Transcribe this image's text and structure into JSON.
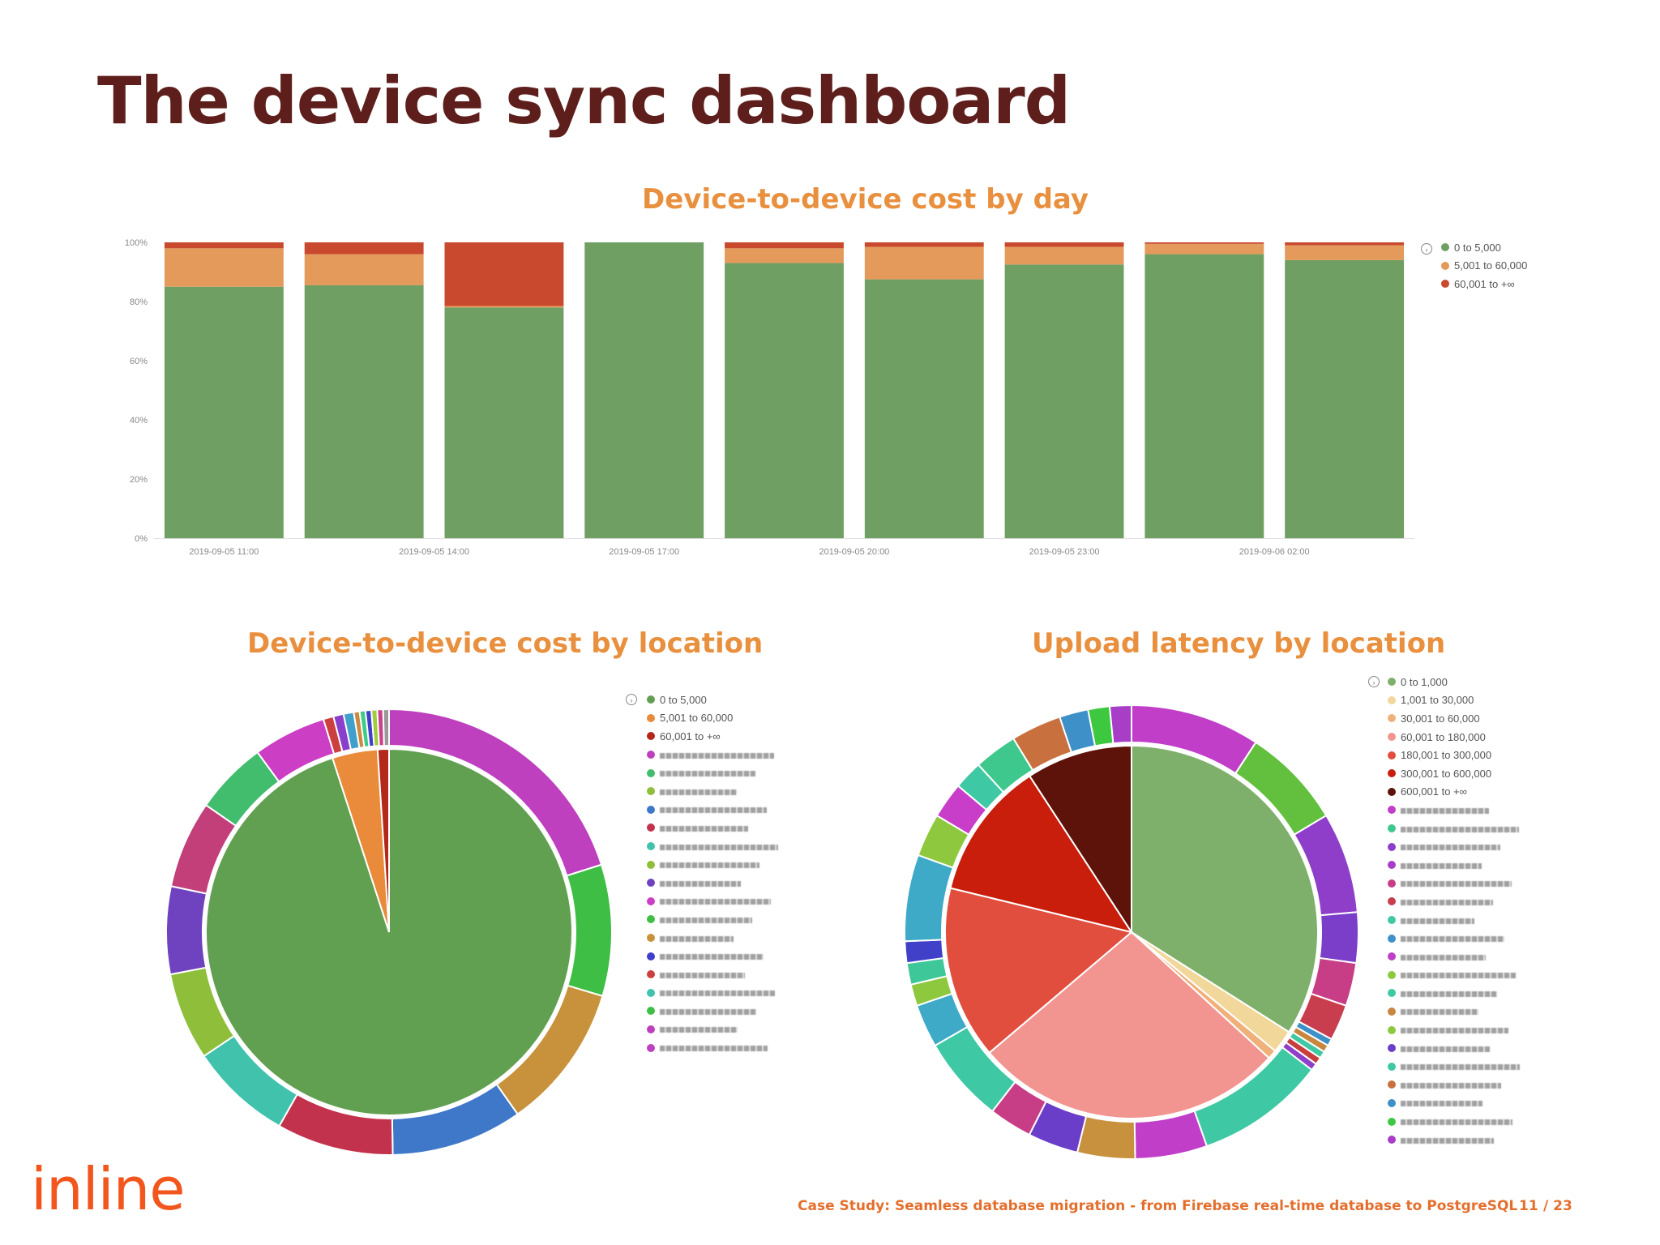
{
  "slide": {
    "title": "The device sync dashboard",
    "brand": "inline",
    "footer": "Case Study: Seamless database migration - from Firebase real-time database to PostgreSQL",
    "page_number": "11",
    "page_total": "/ 23"
  },
  "headings": {
    "bar": "Device-to-device cost by day",
    "pie_left": "Device-to-device cost by location",
    "pie_right": "Upload latency by location"
  },
  "legend_toggle_icon": "expand-circle-icon",
  "chart_data": [
    {
      "type": "bar",
      "stacked": true,
      "ylim": [
        0,
        100
      ],
      "y_ticks": [
        "0%",
        "20%",
        "40%",
        "60%",
        "80%",
        "100%"
      ],
      "x_tick_labels": [
        "2019-09-05 11:00",
        "2019-09-05 14:00",
        "2019-09-05 17:00",
        "2019-09-05 20:00",
        "2019-09-05 23:00",
        "2019-09-06 02:00"
      ],
      "series": [
        {
          "name": "0 to 5,000",
          "color": "#709f64",
          "values": [
            85,
            85.5,
            78,
            100,
            93,
            87.5,
            92.5,
            96,
            94
          ]
        },
        {
          "name": "5,001 to 60,000",
          "color": "#e39a5b",
          "values": [
            13,
            10.5,
            0.5,
            0,
            5,
            11,
            6,
            3.5,
            5
          ]
        },
        {
          "name": "60,001 to +∞",
          "color": "#c9492e",
          "values": [
            2,
            4,
            21.5,
            0,
            2,
            1.5,
            1.5,
            0.5,
            1
          ]
        }
      ],
      "legend_placement": "top-right",
      "grid": false
    },
    {
      "type": "pie",
      "inner": {
        "series": [
          {
            "name": "0 to 5,000",
            "color": "#62a051",
            "value": 95
          },
          {
            "name": "5,001 to 60,000",
            "color": "#e98b3a",
            "value": 4
          },
          {
            "name": "60,001 to +∞",
            "color": "#b3281a",
            "value": 1
          }
        ]
      },
      "outer": {
        "values": [
          19,
          9,
          10,
          9,
          8,
          7,
          6,
          6,
          6,
          5,
          5,
          0.7,
          0.7,
          0.7,
          0.4,
          0.4,
          0.4,
          0.4,
          0.4,
          0.4
        ],
        "colors": [
          "#bf40bf",
          "#3fbe46",
          "#c8913b",
          "#3f77c9",
          "#c2324d",
          "#40c2ad",
          "#8fbf3a",
          "#6f43bf",
          "#c23f7a",
          "#42bd6e",
          "#cc3fc4",
          "#cc3f3f",
          "#8a3fcc",
          "#3fa0cc",
          "#cc8a3f",
          "#3fcc8a",
          "#3f3fcc",
          "#a0cc3f",
          "#cc3f8a",
          "#999999"
        ]
      },
      "legend_visible": [
        "0 to 5,000",
        "5,001 to 60,000",
        "60,001 to +∞"
      ],
      "legend_colors": [
        "#62a051",
        "#e98b3a",
        "#b3281a",
        "#bf40bf",
        "#42bd6e",
        "#8fbf3a",
        "#3f77c9",
        "#c2324d",
        "#40c2ad",
        "#8fbf3a",
        "#6f43bf",
        "#cc3fc4",
        "#3fbe46",
        "#c8913b",
        "#3f3fcc",
        "#cc3f3f",
        "#40c2ad",
        "#3fbe46",
        "#bf40bf",
        "#bf40bf"
      ],
      "legend_placement": "right"
    },
    {
      "type": "pie",
      "inner": {
        "series": [
          {
            "name": "0 to 1,000",
            "color": "#7fb06b",
            "value": 34
          },
          {
            "name": "1,001 to 30,000",
            "color": "#f2d79a",
            "value": 2
          },
          {
            "name": "30,001 to 60,000",
            "color": "#f0b07a",
            "value": 0.8
          },
          {
            "name": "60,001 to 180,000",
            "color": "#f29590",
            "value": 27
          },
          {
            "name": "180,001 to 300,000",
            "color": "#e24e3e",
            "value": 15
          },
          {
            "name": "300,001 to 600,000",
            "color": "#c81e0b",
            "value": 12
          },
          {
            "name": "600,001 to +∞",
            "color": "#5d130a",
            "value": 9.2
          }
        ]
      },
      "outer": {
        "values": [
          9,
          7,
          7,
          3.5,
          3,
          2.5,
          0.5,
          0.5,
          0.5,
          0.5,
          0.5,
          9,
          5,
          4,
          3.5,
          3,
          6,
          3,
          1.5,
          1.5,
          1.5,
          6,
          3,
          2.5,
          2,
          3,
          3.5,
          2,
          1.5,
          1.5
        ],
        "colors": [
          "#c03ec8",
          "#62c03e",
          "#8e3ec8",
          "#7a3ec8",
          "#c83e86",
          "#c83e4e",
          "#3e90c8",
          "#c8863e",
          "#3ec8a4",
          "#c83e3e",
          "#8e3ec8",
          "#3ec8a4",
          "#c03ec8",
          "#c8913e",
          "#6a3ec8",
          "#c83e86",
          "#3ec8a4",
          "#3eaac8",
          "#8ec83e",
          "#3ec89a",
          "#4040c8",
          "#3eaac8",
          "#8ec83e",
          "#c83ec8",
          "#3ec8a4",
          "#3ec88e",
          "#c8713e",
          "#3e90c8",
          "#3ec840",
          "#a83ec8"
        ]
      },
      "legend_visible": [
        "0 to 1,000",
        "1,001 to 30,000",
        "30,001 to 60,000",
        "60,001 to 180,000",
        "180,001 to 300,000",
        "300,001 to 600,000",
        "600,001 to +∞"
      ],
      "legend_colors": [
        "#7fb06b",
        "#f2d79a",
        "#f0b07a",
        "#f29590",
        "#e24e3e",
        "#c81e0b",
        "#5d130a",
        "#c03ec8",
        "#3ec88e",
        "#8e3ec8",
        "#a83ec8",
        "#c83e86",
        "#c83e4e",
        "#3ec8a4",
        "#3e90c8",
        "#c03ec8",
        "#8ec83e",
        "#3ec8a4",
        "#c8863e",
        "#8ec83e",
        "#6a3ec8",
        "#3ec8a4",
        "#c8713e",
        "#3e90c8",
        "#3ec840",
        "#a83ec8"
      ],
      "legend_placement": "right"
    }
  ]
}
